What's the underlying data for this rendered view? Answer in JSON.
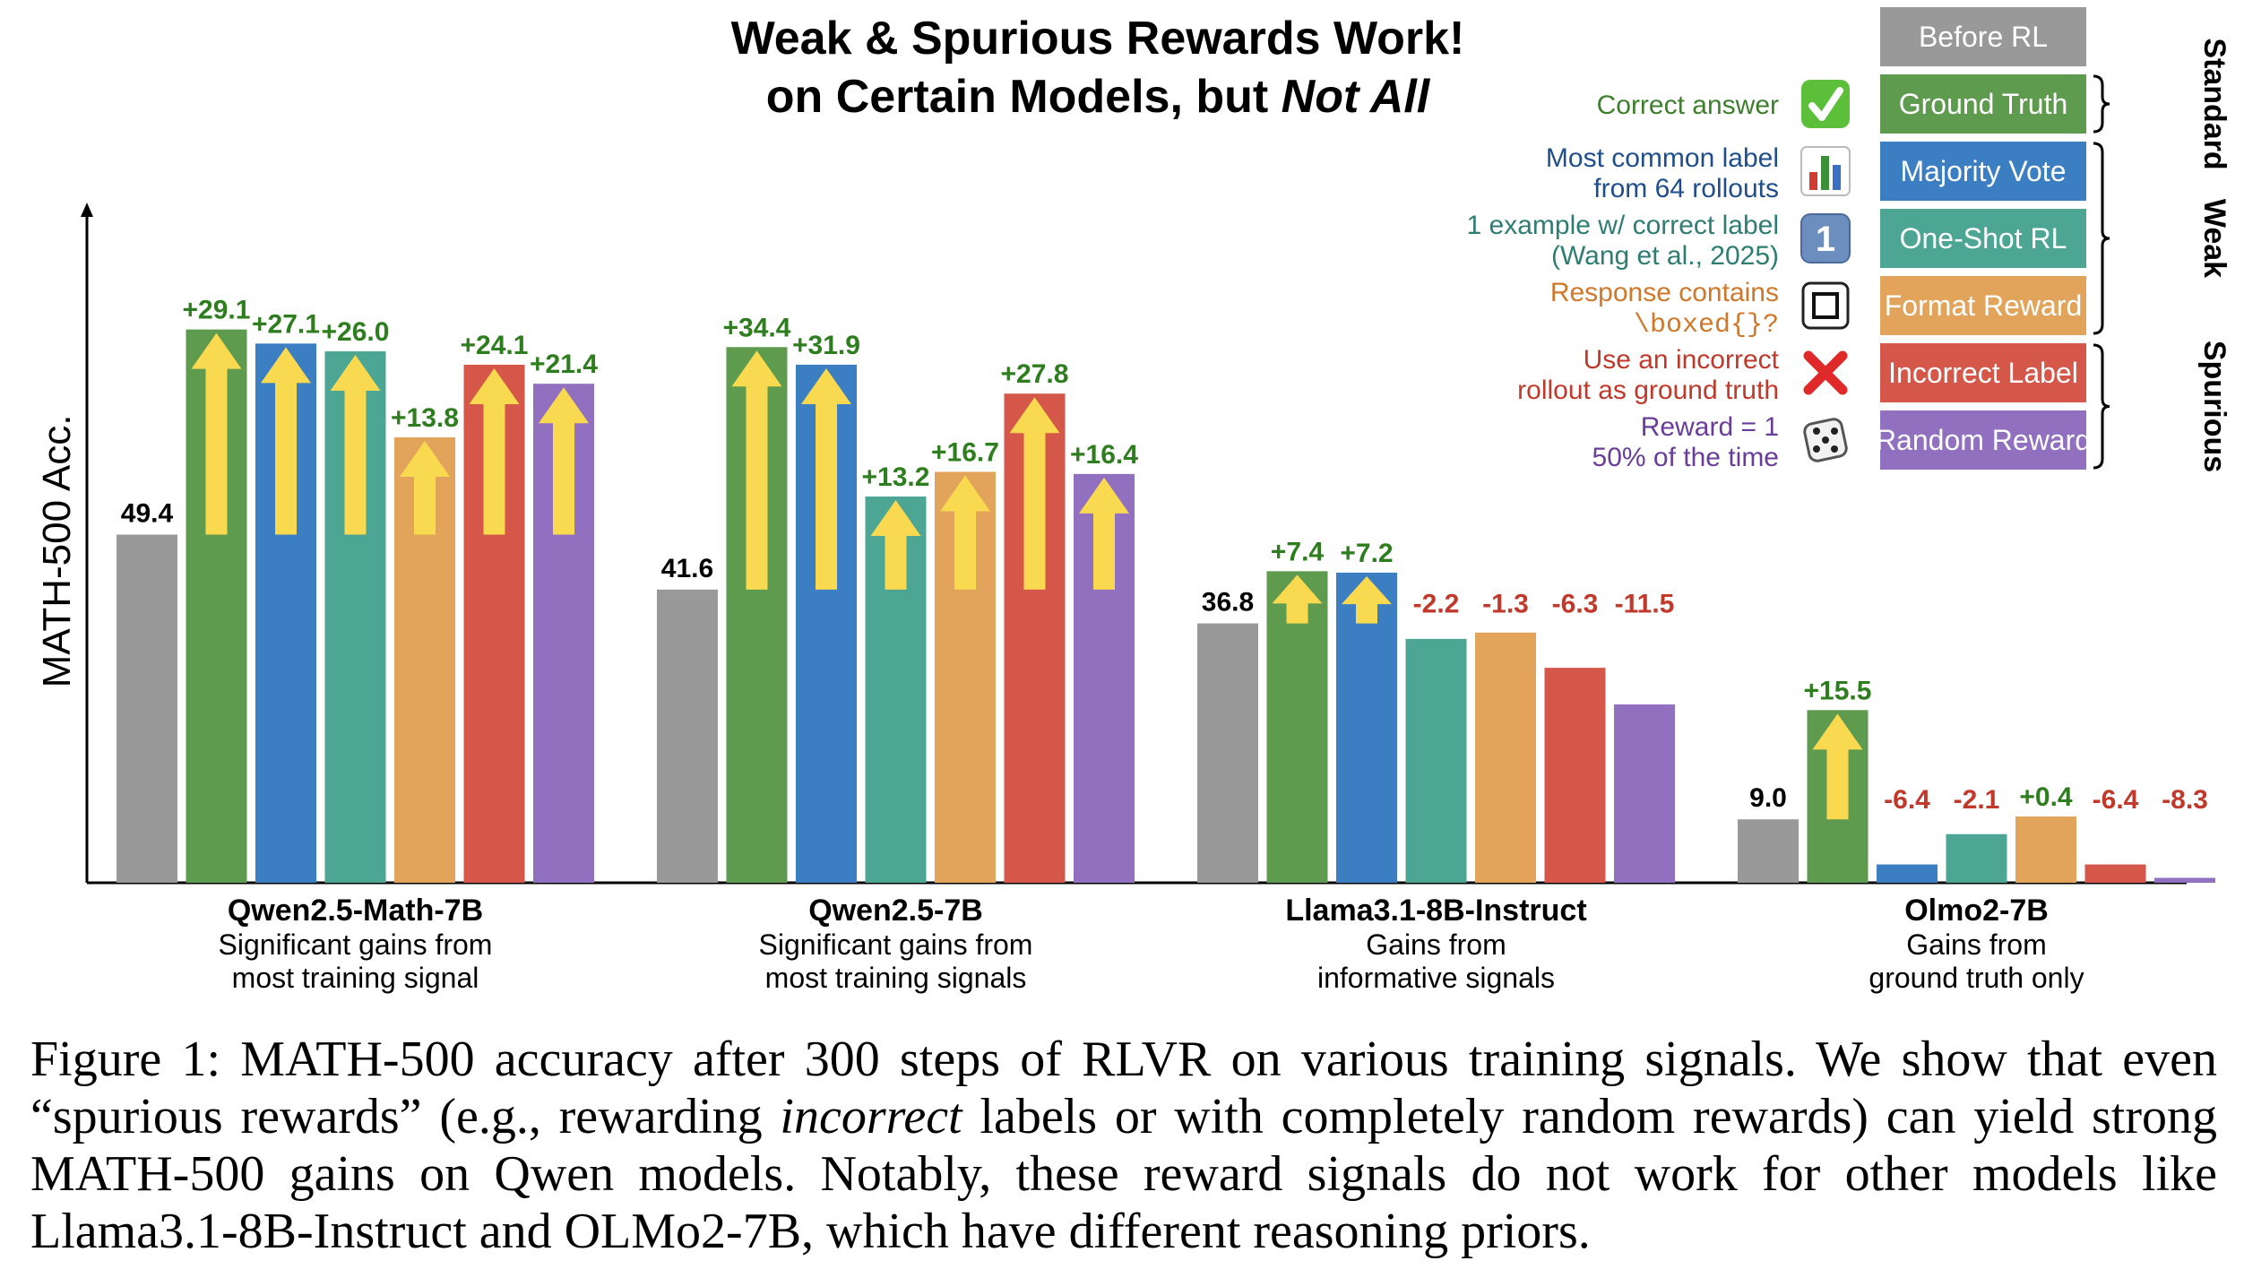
{
  "chart_data": {
    "type": "bar",
    "title": "Weak & Spurious Rewards Work!",
    "subtitle_prefix": "on Certain Models, but ",
    "subtitle_emph": "Not All",
    "ylabel": "MATH-500 Acc.",
    "ylim": [
      0,
      96
    ],
    "grid": false,
    "legend_position": "top-right",
    "series": [
      {
        "name": "Before RL",
        "color": "#999999",
        "group": ""
      },
      {
        "name": "Ground Truth",
        "color": "#5e9b4e",
        "group": "Standard",
        "desc": [
          "Correct answer"
        ],
        "icon": "check-mark-icon"
      },
      {
        "name": "Majority Vote",
        "color": "#3b7fc2",
        "group": "Weak",
        "desc": [
          "Most common label",
          "from 64 rollouts"
        ],
        "icon": "bar-chart-icon"
      },
      {
        "name": "One-Shot RL",
        "color": "#4da694",
        "group": "Weak",
        "desc": [
          "1 example w/ correct label",
          "(Wang et al., 2025)"
        ],
        "icon": "keycap-one-icon"
      },
      {
        "name": "Format Reward",
        "color": "#e2a45a",
        "group": "Weak",
        "desc": [
          "Response contains",
          "\\boxed{}?"
        ],
        "icon": "square-icon"
      },
      {
        "name": "Incorrect Label",
        "color": "#d4574a",
        "group": "Spurious",
        "desc": [
          "Use an incorrect",
          "rollout as ground truth"
        ],
        "icon": "cross-mark-icon"
      },
      {
        "name": "Random Reward",
        "color": "#9270c0",
        "group": "Spurious",
        "desc": [
          "Reward = 1",
          "50% of the time"
        ],
        "icon": "dice-icon"
      }
    ],
    "desc_colors": [
      "",
      "#3d7f2c",
      "#1f4e8c",
      "#2e7d73",
      "#d0782a",
      "#c0392b",
      "#6a3d9a"
    ],
    "groups": [
      {
        "model": "Qwen2.5-Math-7B",
        "subtitle": [
          "Significant gains from",
          "most training signal"
        ],
        "base": 49.4,
        "base_label": "49.4",
        "deltas": [
          29.1,
          27.1,
          26.0,
          13.8,
          24.1,
          21.4
        ],
        "delta_labels": [
          "+29.1",
          "+27.1",
          "+26.0",
          "+13.8",
          "+24.1",
          "+21.4"
        ]
      },
      {
        "model": "Qwen2.5-7B",
        "subtitle": [
          "Significant gains from",
          "most training signals"
        ],
        "base": 41.6,
        "base_label": "41.6",
        "deltas": [
          34.4,
          31.9,
          13.2,
          16.7,
          27.8,
          16.4
        ],
        "delta_labels": [
          "+34.4",
          "+31.9",
          "+13.2",
          "+16.7",
          "+27.8",
          "+16.4"
        ]
      },
      {
        "model": "Llama3.1-8B-Instruct",
        "subtitle": [
          "Gains from",
          "informative signals"
        ],
        "base": 36.8,
        "base_label": "36.8",
        "deltas": [
          7.4,
          7.2,
          -2.2,
          -1.3,
          -6.3,
          -11.5
        ],
        "delta_labels": [
          "+7.4",
          "+7.2",
          "-2.2",
          "-1.3",
          "-6.3",
          "-11.5"
        ]
      },
      {
        "model": "Olmo2-7B",
        "subtitle": [
          "Gains from",
          "ground truth only"
        ],
        "base": 9.0,
        "base_label": "9.0",
        "deltas": [
          15.5,
          -6.4,
          -2.1,
          0.4,
          -6.4,
          -8.3
        ],
        "delta_labels": [
          "+15.5",
          "-6.4",
          "-2.1",
          "+0.4",
          "-6.4",
          "-8.3"
        ]
      }
    ],
    "legend_groups": [
      {
        "label": "Standard",
        "from": 1,
        "to": 1
      },
      {
        "label": "Weak",
        "from": 2,
        "to": 4
      },
      {
        "label": "Spurious",
        "from": 5,
        "to": 6
      }
    ]
  },
  "colors": {
    "positive_label": "#2e7d1e",
    "negative_label": "#c0392b",
    "arrow_fill": "#f9d94f",
    "axis": "#000000"
  },
  "caption": {
    "part1": "Figure 1: MATH-500 accuracy after 300 steps of RLVR on various training signals. We show that even “spurious rewards” (e.g., rewarding ",
    "emph": "incorrect",
    "part2": " labels or with completely random rewards) can yield strong MATH-500 gains on Qwen models. Notably, these reward signals do not work for other models like Llama3.1-8B-Instruct and OLMo2-7B, which have different reasoning priors."
  }
}
